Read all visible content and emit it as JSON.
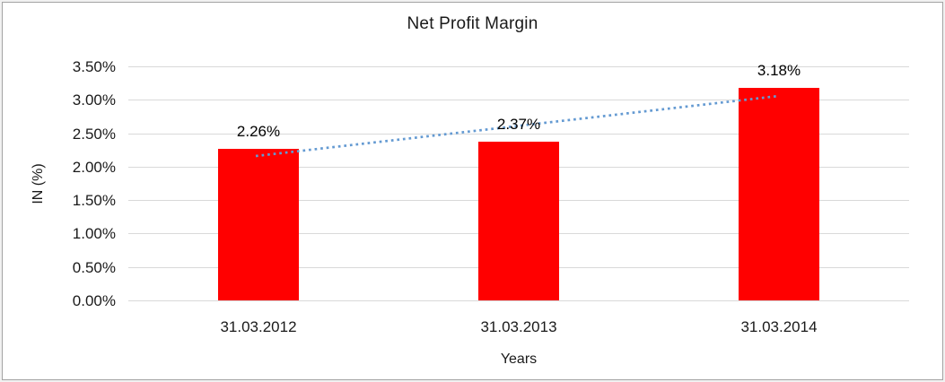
{
  "chart_data": {
    "type": "bar",
    "title": "Net Profit Margin",
    "xlabel": "Years",
    "ylabel": "IN (%)",
    "categories": [
      "31.03.2012",
      "31.03.2013",
      "31.03.2014"
    ],
    "series": [
      {
        "name": "Net Profit Margin",
        "values": [
          2.26,
          2.37,
          3.18
        ],
        "color": "#ff0000"
      }
    ],
    "data_labels": [
      "2.26%",
      "2.37%",
      "3.18%"
    ],
    "ylim": [
      0,
      3.5
    ],
    "ytick_step": 0.5,
    "ytick_labels": [
      "0.00%",
      "0.50%",
      "1.00%",
      "1.50%",
      "2.00%",
      "2.50%",
      "3.00%",
      "3.50%"
    ],
    "grid": true,
    "gridline_color": "#d9d9d9",
    "legend": false,
    "background": "#ffffff",
    "text_color": "#1a1a1a",
    "trendline": {
      "type": "linear",
      "style": "dotted",
      "color": "#649ad2",
      "series": "Net Profit Margin"
    }
  }
}
